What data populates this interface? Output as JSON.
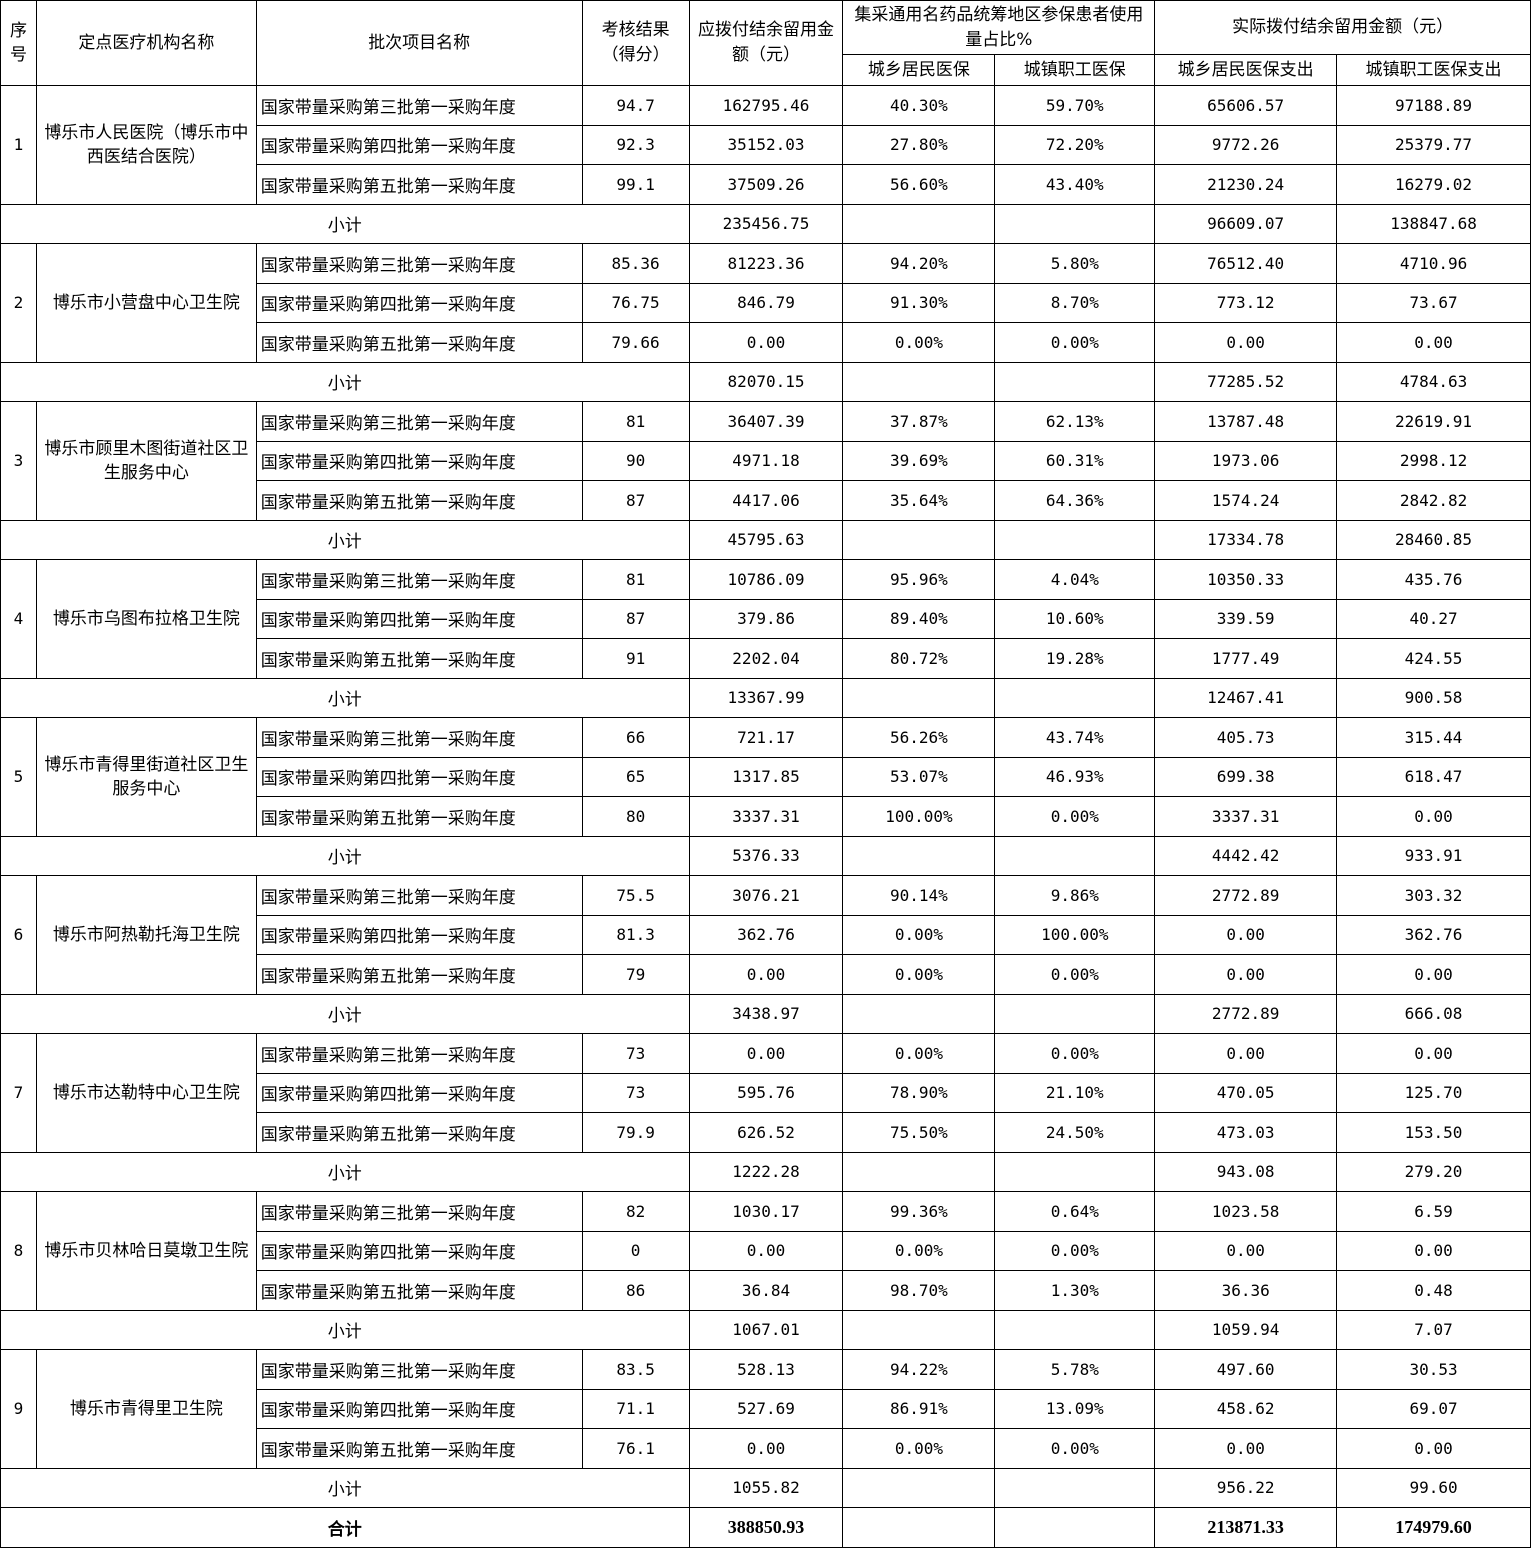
{
  "header": {
    "seq": "序号",
    "org": "定点医疗机构名称",
    "batch": "批次项目名称",
    "score": "考核结果（得分）",
    "due": "应拨付结余留用金额（元）",
    "ratio": "集采通用名药品统筹地区参保患者使用量占比%",
    "actual": "实际拨付结余留用金额（元）",
    "ratio_rural": "城乡居民医保",
    "ratio_urban": "城镇职工医保",
    "actual_rural": "城乡居民医保支出",
    "actual_urban": "城镇职工医保支出"
  },
  "subtotal_label": "小计",
  "total_label": "合计",
  "groups": [
    {
      "seq": "1",
      "org": "博乐市人民医院（博乐市中西医结合医院）",
      "rows": [
        [
          "国家带量采购第三批第一采购年度",
          "94.7",
          "162795.46",
          "40.30%",
          "59.70%",
          "65606.57",
          "97188.89"
        ],
        [
          "国家带量采购第四批第一采购年度",
          "92.3",
          "35152.03",
          "27.80%",
          "72.20%",
          "9772.26",
          "25379.77"
        ],
        [
          "国家带量采购第五批第一采购年度",
          "99.1",
          "37509.26",
          "56.60%",
          "43.40%",
          "21230.24",
          "16279.02"
        ]
      ],
      "subtotal": [
        "235456.75",
        "96609.07",
        "138847.68"
      ]
    },
    {
      "seq": "2",
      "org": "博乐市小营盘中心卫生院",
      "rows": [
        [
          "国家带量采购第三批第一采购年度",
          "85.36",
          "81223.36",
          "94.20%",
          "5.80%",
          "76512.40",
          "4710.96"
        ],
        [
          "国家带量采购第四批第一采购年度",
          "76.75",
          "846.79",
          "91.30%",
          "8.70%",
          "773.12",
          "73.67"
        ],
        [
          "国家带量采购第五批第一采购年度",
          "79.66",
          "0.00",
          "0.00%",
          "0.00%",
          "0.00",
          "0.00"
        ]
      ],
      "subtotal": [
        "82070.15",
        "77285.52",
        "4784.63"
      ]
    },
    {
      "seq": "3",
      "org": "博乐市顾里木图街道社区卫生服务中心",
      "rows": [
        [
          "国家带量采购第三批第一采购年度",
          "81",
          "36407.39",
          "37.87%",
          "62.13%",
          "13787.48",
          "22619.91"
        ],
        [
          "国家带量采购第四批第一采购年度",
          "90",
          "4971.18",
          "39.69%",
          "60.31%",
          "1973.06",
          "2998.12"
        ],
        [
          "国家带量采购第五批第一采购年度",
          "87",
          "4417.06",
          "35.64%",
          "64.36%",
          "1574.24",
          "2842.82"
        ]
      ],
      "subtotal": [
        "45795.63",
        "17334.78",
        "28460.85"
      ]
    },
    {
      "seq": "4",
      "org": "博乐市乌图布拉格卫生院",
      "rows": [
        [
          "国家带量采购第三批第一采购年度",
          "81",
          "10786.09",
          "95.96%",
          "4.04%",
          "10350.33",
          "435.76"
        ],
        [
          "国家带量采购第四批第一采购年度",
          "87",
          "379.86",
          "89.40%",
          "10.60%",
          "339.59",
          "40.27"
        ],
        [
          "国家带量采购第五批第一采购年度",
          "91",
          "2202.04",
          "80.72%",
          "19.28%",
          "1777.49",
          "424.55"
        ]
      ],
      "subtotal": [
        "13367.99",
        "12467.41",
        "900.58"
      ]
    },
    {
      "seq": "5",
      "org": "博乐市青得里街道社区卫生服务中心",
      "rows": [
        [
          "国家带量采购第三批第一采购年度",
          "66",
          "721.17",
          "56.26%",
          "43.74%",
          "405.73",
          "315.44"
        ],
        [
          "国家带量采购第四批第一采购年度",
          "65",
          "1317.85",
          "53.07%",
          "46.93%",
          "699.38",
          "618.47"
        ],
        [
          "国家带量采购第五批第一采购年度",
          "80",
          "3337.31",
          "100.00%",
          "0.00%",
          "3337.31",
          "0.00"
        ]
      ],
      "subtotal": [
        "5376.33",
        "4442.42",
        "933.91"
      ]
    },
    {
      "seq": "6",
      "org": "博乐市阿热勒托海卫生院",
      "rows": [
        [
          "国家带量采购第三批第一采购年度",
          "75.5",
          "3076.21",
          "90.14%",
          "9.86%",
          "2772.89",
          "303.32"
        ],
        [
          "国家带量采购第四批第一采购年度",
          "81.3",
          "362.76",
          "0.00%",
          "100.00%",
          "0.00",
          "362.76"
        ],
        [
          "国家带量采购第五批第一采购年度",
          "79",
          "0.00",
          "0.00%",
          "0.00%",
          "0.00",
          "0.00"
        ]
      ],
      "subtotal": [
        "3438.97",
        "2772.89",
        "666.08"
      ]
    },
    {
      "seq": "7",
      "org": "博乐市达勒特中心卫生院",
      "rows": [
        [
          "国家带量采购第三批第一采购年度",
          "73",
          "0.00",
          "0.00%",
          "0.00%",
          "0.00",
          "0.00"
        ],
        [
          "国家带量采购第四批第一采购年度",
          "73",
          "595.76",
          "78.90%",
          "21.10%",
          "470.05",
          "125.70"
        ],
        [
          "国家带量采购第五批第一采购年度",
          "79.9",
          "626.52",
          "75.50%",
          "24.50%",
          "473.03",
          "153.50"
        ]
      ],
      "subtotal": [
        "1222.28",
        "943.08",
        "279.20"
      ]
    },
    {
      "seq": "8",
      "org": "博乐市贝林哈日莫墩卫生院",
      "rows": [
        [
          "国家带量采购第三批第一采购年度",
          "82",
          "1030.17",
          "99.36%",
          "0.64%",
          "1023.58",
          "6.59"
        ],
        [
          "国家带量采购第四批第一采购年度",
          "0",
          "0.00",
          "0.00%",
          "0.00%",
          "0.00",
          "0.00"
        ],
        [
          "国家带量采购第五批第一采购年度",
          "86",
          "36.84",
          "98.70%",
          "1.30%",
          "36.36",
          "0.48"
        ]
      ],
      "subtotal": [
        "1067.01",
        "1059.94",
        "7.07"
      ]
    },
    {
      "seq": "9",
      "org": "博乐市青得里卫生院",
      "rows": [
        [
          "国家带量采购第三批第一采购年度",
          "83.5",
          "528.13",
          "94.22%",
          "5.78%",
          "497.60",
          "30.53"
        ],
        [
          "国家带量采购第四批第一采购年度",
          "71.1",
          "527.69",
          "86.91%",
          "13.09%",
          "458.62",
          "69.07"
        ],
        [
          "国家带量采购第五批第一采购年度",
          "76.1",
          "0.00",
          "0.00%",
          "0.00%",
          "0.00",
          "0.00"
        ]
      ],
      "subtotal": [
        "1055.82",
        "956.22",
        "99.60"
      ]
    }
  ],
  "total": [
    "388850.93",
    "213871.33",
    "174979.60"
  ]
}
